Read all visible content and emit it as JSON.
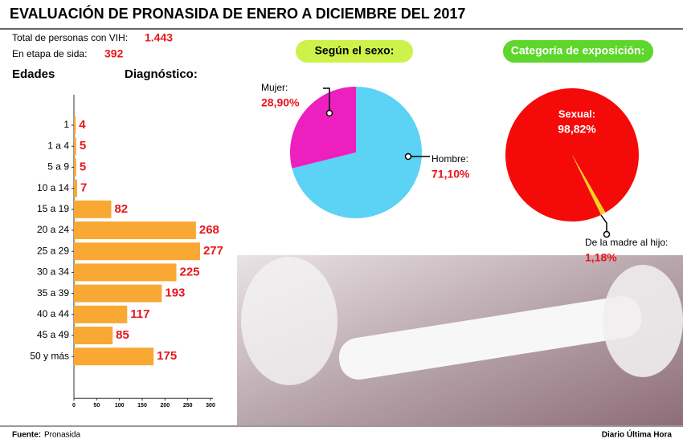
{
  "header": {
    "title": "EVALUACIÓN DE PRONASIDA  DE ENERO A DICIEMBRE DEL 2017"
  },
  "stats": [
    {
      "label": "Total de personas con VIH:",
      "value": "1.443"
    },
    {
      "label": "En etapa de sida:",
      "value": "392"
    }
  ],
  "chart_data": [
    {
      "type": "bar",
      "orientation": "horizontal",
      "y_label": "Edades",
      "title": "Diagnóstico:",
      "categories": [
        "1",
        "1 a 4",
        "5 a 9",
        "10 a 14",
        "15 a 19",
        "20 a 24",
        "25 a 29",
        "30 a 34",
        "35 a 39",
        "40 a 44",
        "45 a 49",
        "50 y más"
      ],
      "values": [
        4,
        5,
        5,
        7,
        82,
        268,
        277,
        225,
        193,
        117,
        85,
        175
      ],
      "color": "#f9a834",
      "xlim": [
        0,
        300
      ],
      "xticks": [
        0,
        50,
        100,
        150,
        200,
        250,
        300
      ]
    },
    {
      "type": "pie",
      "title": "Según el sexo:",
      "categories": [
        "Mujer:",
        "Hombre:"
      ],
      "values": [
        28.9,
        71.1
      ],
      "value_labels": [
        "28,90%",
        "71,10%"
      ],
      "colors": [
        "#ee1fbf",
        "#5cd2f5"
      ]
    },
    {
      "type": "pie",
      "title": "Categoría de exposición:",
      "categories": [
        "Sexual:",
        "De la madre al hijo:"
      ],
      "values": [
        98.82,
        1.18
      ],
      "value_labels": [
        "98,82%",
        "1,18%"
      ],
      "colors": [
        "#f50a0a",
        "#f3d21e"
      ]
    }
  ],
  "footer": {
    "source_label": "Fuente:",
    "source": "Pronasida",
    "credit": "Diario Última Hora"
  }
}
